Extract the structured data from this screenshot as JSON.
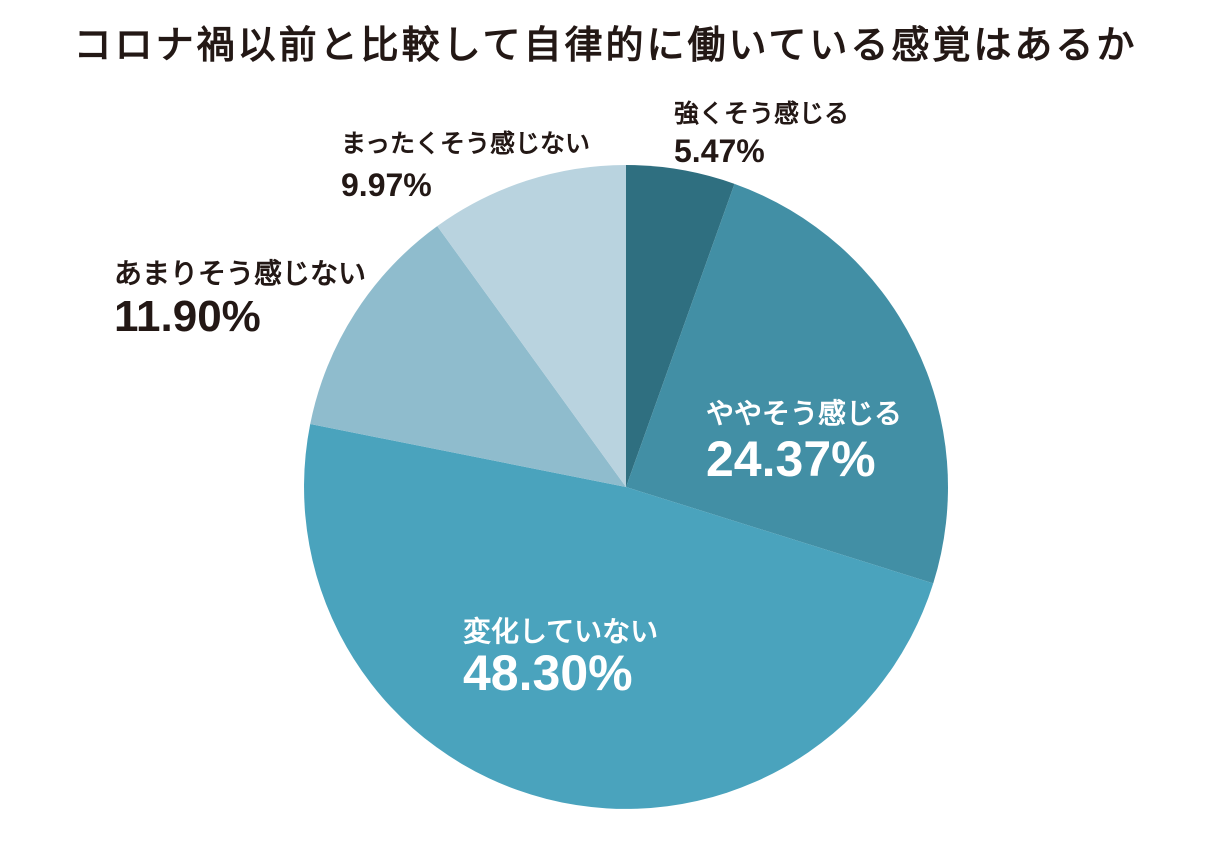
{
  "title": "コロナ禍以前と比較して自律的に働いている感覚はあるか",
  "chart_data": {
    "type": "pie",
    "title": "コロナ禍以前と比較して自律的に働いている感覚はあるか",
    "start": "12 o'clock",
    "direction": "clockwise",
    "slices": [
      {
        "label": "強くそう感じる",
        "value": 5.47,
        "value_label": "5.47%",
        "color": "#2f6f80",
        "label_position": "outside"
      },
      {
        "label": "ややそう感じる",
        "value": 24.37,
        "value_label": "24.37%",
        "color": "#428fa5",
        "label_position": "inside"
      },
      {
        "label": "変化していない",
        "value": 48.3,
        "value_label": "48.30%",
        "color": "#4aa3bd",
        "label_position": "inside"
      },
      {
        "label": "あまりそう感じない",
        "value": 11.9,
        "value_label": "11.90%",
        "color": "#8fbccd",
        "label_position": "outside"
      },
      {
        "label": "まったくそう感じない",
        "value": 9.97,
        "value_label": "9.97%",
        "color": "#b9d3df",
        "label_position": "outside"
      }
    ],
    "colors": {
      "text_dark": "#231815",
      "text_light": "#ffffff"
    }
  }
}
